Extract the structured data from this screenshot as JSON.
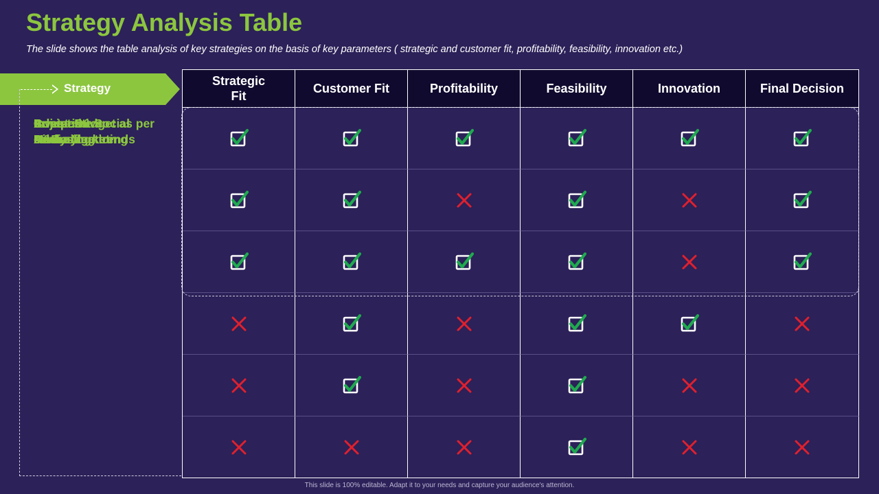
{
  "slide": {
    "title": "Strategy Analysis Table",
    "subtitle": "The slide shows  the table analysis of key strategies on the basis of key parameters ( strategic and customer fit, profitability, feasibility, innovation etc.)",
    "footer": "This slide is 100% editable. Adapt it to your needs and capture your audience's attention."
  },
  "table": {
    "corner_label": "Strategy",
    "columns": [
      "Strategic\nFit",
      "Customer Fit",
      "Profitability",
      "Feasibility",
      "Innovation",
      "Final Decision"
    ],
    "rows": [
      {
        "label": "Invest in\nR&D",
        "values": [
          true,
          true,
          true,
          true,
          true,
          true
        ]
      },
      {
        "label": "Business\nDiversification",
        "values": [
          true,
          true,
          false,
          true,
          false,
          true
        ]
      },
      {
        "label": "Price\nAnalysing",
        "values": [
          true,
          true,
          true,
          true,
          false,
          true
        ]
      },
      {
        "label": "Competitive\nAdvantage",
        "values": [
          false,
          true,
          false,
          true,
          true,
          false
        ]
      },
      {
        "label": "Content & Social\nMedia Marketing",
        "values": [
          false,
          true,
          false,
          true,
          false,
          false
        ]
      },
      {
        "label": "Adjust Budget as per\ncar-buying trends",
        "values": [
          false,
          false,
          false,
          true,
          false,
          false
        ]
      }
    ]
  },
  "icons": {
    "yes": "checkbox-checked-icon",
    "no": "cross-icon"
  },
  "colors": {
    "background": "#2c2158",
    "accent": "#8cc63f",
    "header_bg": "#100a2e",
    "check": "#1faa4f",
    "cross": "#e0202e"
  }
}
